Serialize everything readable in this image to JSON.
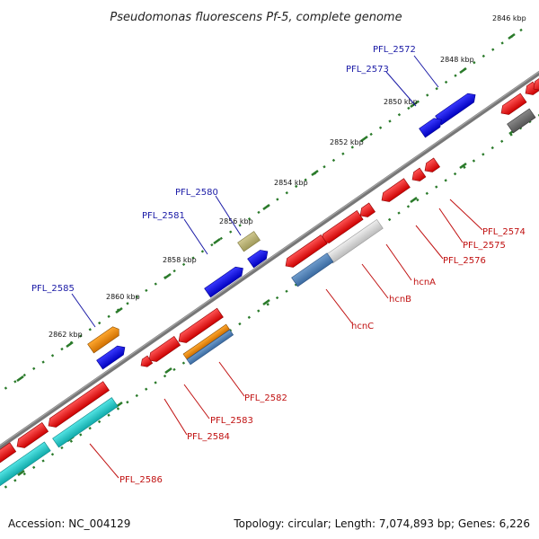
{
  "title": "Pseudomonas fluorescens Pf-5, complete genome",
  "accession": "Accession: NC_004129",
  "summary": "Topology: circular; Length: 7,074,893 bp; Genes: 6,226",
  "ticks": [
    {
      "id": "t2846",
      "label": "2846 kbp"
    },
    {
      "id": "t2848",
      "label": "2848 kbp"
    },
    {
      "id": "t2850",
      "label": "2850 kbp"
    },
    {
      "id": "t2852",
      "label": "2852 kbp"
    },
    {
      "id": "t2854",
      "label": "2854 kbp"
    },
    {
      "id": "t2856",
      "label": "2856 kbp"
    },
    {
      "id": "t2858",
      "label": "2858 kbp"
    },
    {
      "id": "t2860",
      "label": "2860 kbp"
    },
    {
      "id": "t2862",
      "label": "2862 kbp"
    }
  ],
  "genes_top": [
    {
      "id": "g2572",
      "label": "PFL_2572"
    },
    {
      "id": "g2573",
      "label": "PFL_2573"
    },
    {
      "id": "g2580",
      "label": "PFL_2580"
    },
    {
      "id": "g2581",
      "label": "PFL_2581"
    },
    {
      "id": "g2585",
      "label": "PFL_2585"
    }
  ],
  "genes_bottom": [
    {
      "id": "g2574",
      "label": "PFL_2574"
    },
    {
      "id": "g2575",
      "label": "PFL_2575"
    },
    {
      "id": "g2576",
      "label": "PFL_2576"
    },
    {
      "id": "hcnA",
      "label": "hcnA"
    },
    {
      "id": "hcnB",
      "label": "hcnB"
    },
    {
      "id": "hcnC",
      "label": "hcnC"
    },
    {
      "id": "g2582",
      "label": "PFL_2582"
    },
    {
      "id": "g2583",
      "label": "PFL_2583"
    },
    {
      "id": "g2584",
      "label": "PFL_2584"
    },
    {
      "id": "g2586",
      "label": "PFL_2586"
    }
  ],
  "colors": {
    "backbone": "#888888",
    "cds_forward": "#1010e0",
    "cds_reverse": "#ee1111",
    "gene_reverse": "#dddddd",
    "tick_dots": "#2a7a2a",
    "label_top": "#1a1aa6",
    "label_bottom": "#c01010",
    "cyan": "#22cccc",
    "steelblue": "#4a7ab0",
    "orange": "#ee8a10",
    "khaki": "#b8b070",
    "darkgray": "#666666"
  }
}
